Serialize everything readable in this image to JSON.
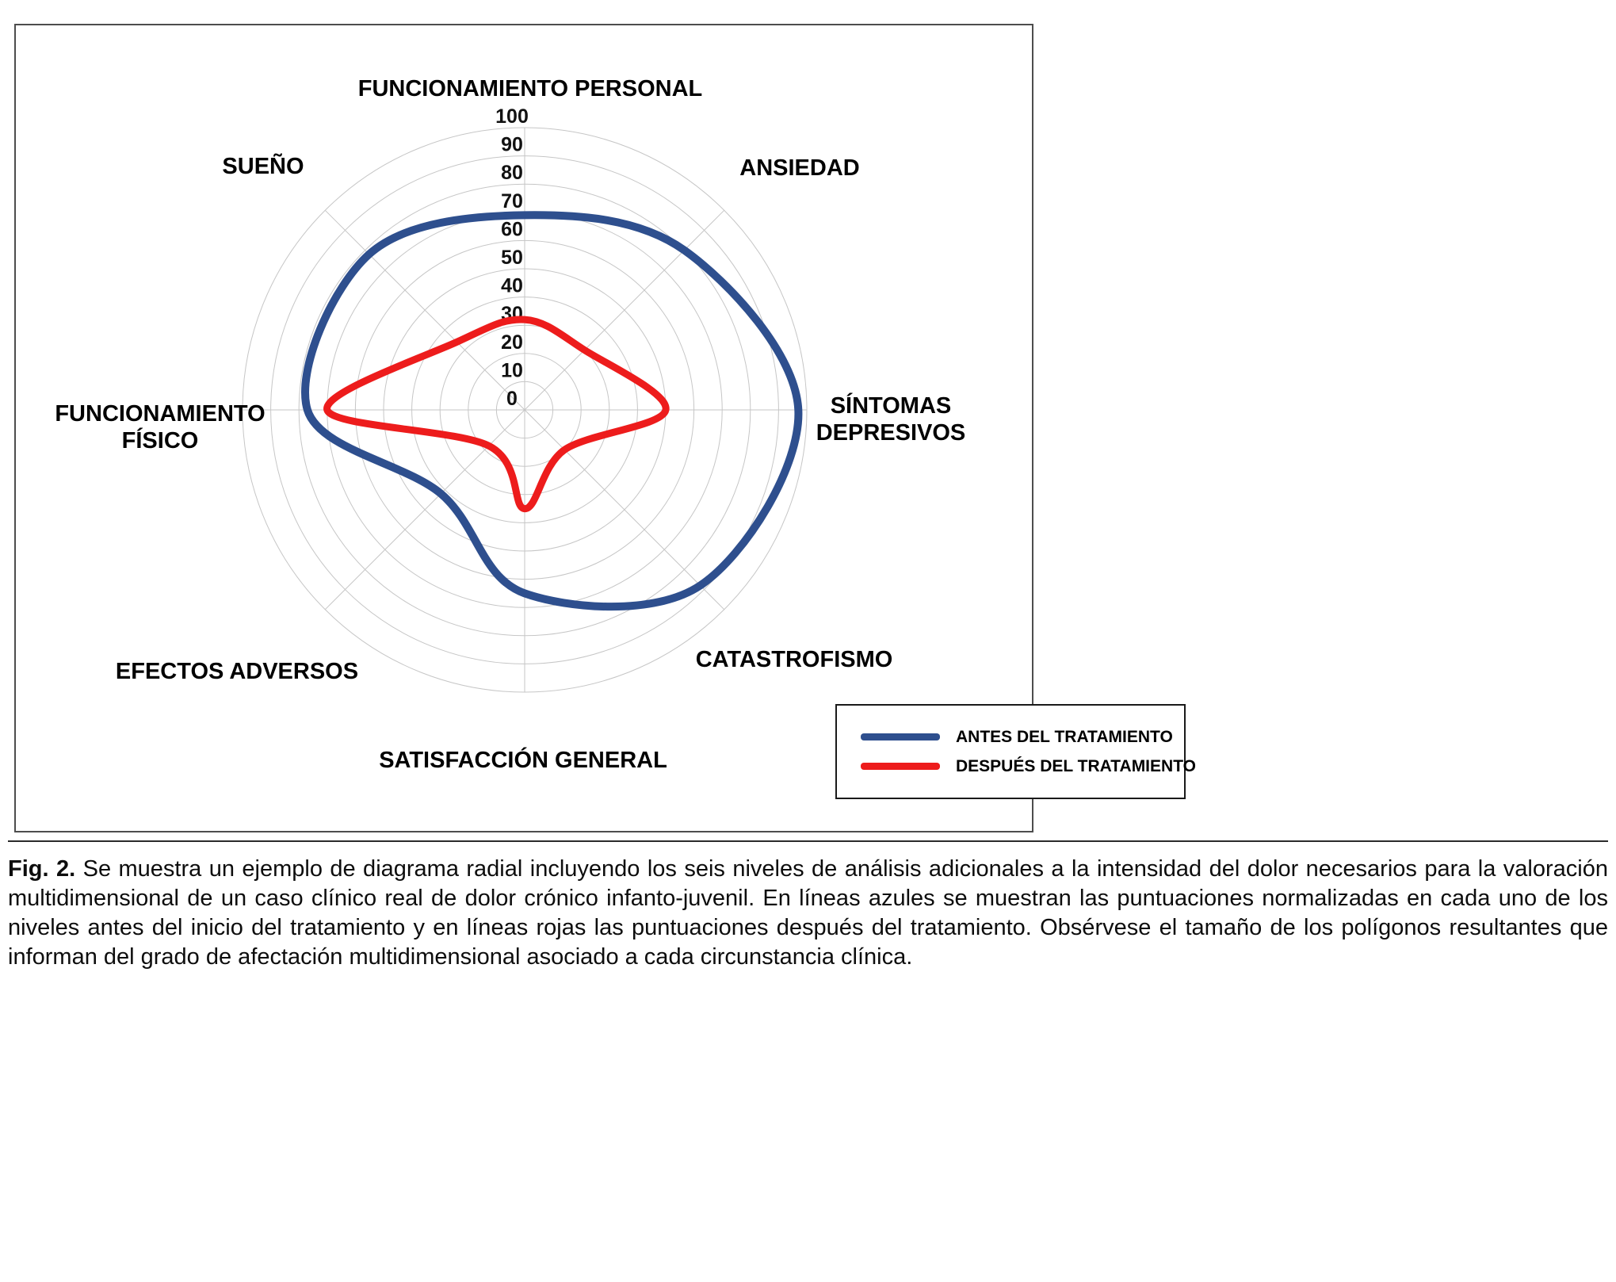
{
  "figure": {
    "caption": {
      "label": "Fig. 2.",
      "text": "Se muestra un ejemplo de diagrama radial incluyendo los seis niveles de análisis adicionales a la intensidad del dolor necesarios para la valoración multidimensional de un caso clínico real de dolor crónico infanto-juvenil. En líneas azules se muestran las puntuaciones normalizadas en cada uno de los niveles antes del inicio del tratamiento y en líneas rojas las puntuaciones después del tratamiento. Obsérvese el tamaño de los polígonos resultantes que informan del grado de afectación multidimensional asociado a cada circunstancia clínica."
    }
  },
  "legend": {
    "items": [
      {
        "label": "ANTES DEL TRATAMIENTO",
        "color": "#2e4f8e"
      },
      {
        "label": "DESPUÉS DEL TRATAMIENTO",
        "color": "#ed1c1c"
      }
    ]
  },
  "chart_data": {
    "type": "radar",
    "categories": [
      "FUNCIONAMIENTO PERSONAL",
      "ANSIEDAD",
      "SÍNTOMAS DEPRESIVOS",
      "CATASTROFISMO",
      "SATISFACCIÓN GENERAL",
      "EFECTOS ADVERSOS",
      "FUNCIONAMIENTO FÍSICO",
      "SUEÑO"
    ],
    "series": [
      {
        "name": "ANTES DEL TRATAMIENTO",
        "color": "#2e4f8e",
        "stroke_width": 10,
        "values": [
          69,
          80,
          97,
          88,
          65,
          42,
          77,
          78
        ]
      },
      {
        "name": "DESPUÉS DEL TRATAMIENTO",
        "color": "#ed1c1c",
        "stroke_width": 9,
        "values": [
          32,
          30,
          50,
          20,
          35,
          18,
          70,
          34
        ]
      }
    ],
    "radial_ticks": [
      0,
      10,
      20,
      30,
      40,
      50,
      60,
      70,
      80,
      90,
      100
    ],
    "rmax": 100,
    "grid": "circular",
    "smooth": true,
    "legend_position": "bottom-right",
    "grid_color": "#c6c6c6"
  }
}
